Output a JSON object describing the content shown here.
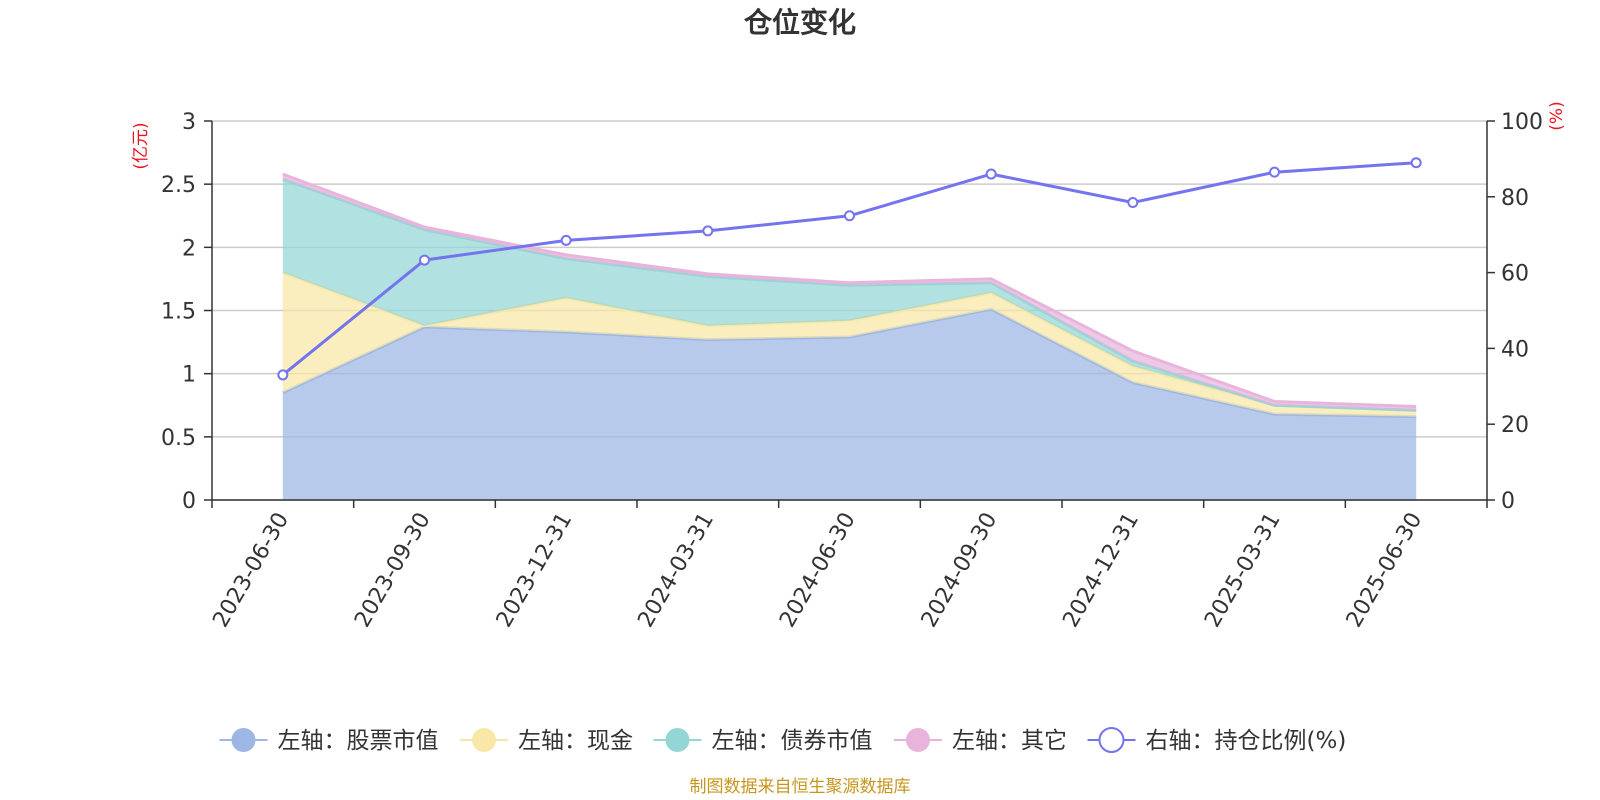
{
  "chart_data": {
    "title": "仓位变化",
    "type": "area",
    "categories": [
      "2023-06-30",
      "2023-09-30",
      "2023-12-31",
      "2024-03-31",
      "2024-06-30",
      "2024-09-30",
      "2024-12-31",
      "2025-03-31",
      "2025-06-30"
    ],
    "y_left": {
      "unit": "(亿元)",
      "range": [
        0,
        3
      ],
      "ticks": [
        "0",
        "0.5",
        "1",
        "1.5",
        "2",
        "2.5",
        "3"
      ]
    },
    "y_right": {
      "unit": "(%)",
      "range": [
        0,
        100
      ],
      "ticks": [
        "0",
        "20",
        "40",
        "60",
        "80",
        "100"
      ]
    },
    "series": [
      {
        "name": "左轴：股票市值",
        "axis": "left",
        "type": "stacked-area",
        "color": "#9db6e3",
        "values": [
          0.85,
          1.37,
          1.33,
          1.27,
          1.29,
          1.51,
          0.93,
          0.68,
          0.66
        ]
      },
      {
        "name": "左轴：现金",
        "axis": "left",
        "type": "stacked-area",
        "color": "#f8e7a6",
        "values": [
          0.95,
          0.01,
          0.27,
          0.11,
          0.13,
          0.13,
          0.13,
          0.07,
          0.05
        ]
      },
      {
        "name": "左轴：债券市值",
        "axis": "left",
        "type": "stacked-area",
        "color": "#94d5d5",
        "values": [
          0.74,
          0.76,
          0.31,
          0.39,
          0.28,
          0.08,
          0.04,
          0.0,
          0.0
        ]
      },
      {
        "name": "左轴：其它",
        "axis": "left",
        "type": "stacked-area",
        "color": "#e8b4dc",
        "values": [
          0.04,
          0.02,
          0.03,
          0.02,
          0.02,
          0.03,
          0.08,
          0.03,
          0.03
        ]
      },
      {
        "name": "右轴：持仓比例(%)",
        "axis": "right",
        "type": "line",
        "color": "#7474ee",
        "values": [
          33.0,
          63.3,
          68.5,
          71.0,
          75.0,
          86.0,
          78.5,
          86.5,
          89.0
        ]
      }
    ],
    "grid": true,
    "legend_position": "bottom"
  },
  "footer": "制图数据来自恒生聚源数据库"
}
